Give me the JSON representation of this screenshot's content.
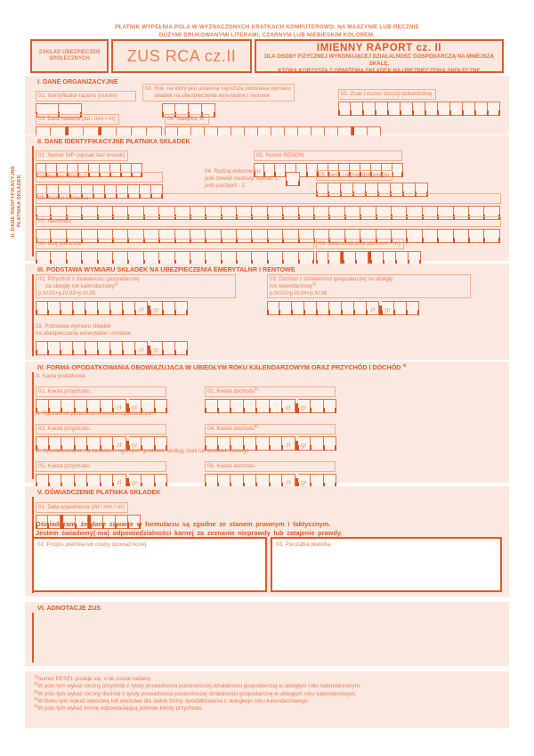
{
  "colors": {
    "accent": "#e0592a",
    "label_orange": "#ed7f52",
    "panel_pink": "#fbe9e1",
    "cell_fill": "#fdf2ec",
    "tick": "#d6521f"
  },
  "currency": {
    "zl": "zł",
    "gr": "gr"
  },
  "instructions": {
    "l1": "PŁATNIK WYPEŁNIA POLA W WYZNACZONYCH KRATKACH KOMPUTEROWO, NA MASZYNIE LUB RĘCZNIE",
    "l2": "DUŻYMI DRUKOWANYMI LITERAMI, CZARNYM LUB NIEBIESKIM KOLOREM."
  },
  "header": {
    "org_l1": "ZAKŁAD UBEZPIECZEŃ",
    "org_l2": "SPOŁECZNYCH",
    "code": "ZUS RCA cz.II",
    "title": "IMIENNY RAPORT cz. II",
    "sub_l1": "DLA OSOBY FIZYCZNEJ WYKONUJĄCEJ DZIAŁALNOŚĆ GOSPODARCZĄ NA MNIEJSZĄ SKALĘ,",
    "sub_l2": "KTÓRA KORZYSTA Z OBNIŻENIA SKŁADEK NA UBEZPIECZENIA SPOŁECZNE"
  },
  "s1": {
    "title": "I. DANE ORGANIZACYJNE",
    "f01": "01. Identyfikator raportu (numer)",
    "f02_l1": "02. Rok, na który jest ustalona najniższa podstawa wymiaru",
    "f02_l2": "składek na ubezpieczenia emerytalne i rentowe",
    "f03": "03. Data nadania (dd / mm / rrr)",
    "f04": "04. Nalepka „R”",
    "f05": "05. Znak i numer decyzji pokontrolnej"
  },
  "s2": {
    "title": "II. DANE IDENTYFIKACYJNE PŁATNIKA SKŁADEK",
    "side_l1": "II. DANE IDENTYFIKACYJNE",
    "side_l2": "PŁATNIKA SKŁADEK",
    "f01": "01. Numer NIP (wpisać bez kresek)",
    "f02": "02. Numer REGON",
    "f03": {
      "label": "03. Numer PESEL",
      "sup": "1)"
    },
    "f04_l1": "04. Rodzaj dokumentu:",
    "f04_l2": "jeśli dowód osobisty, wpisać 1,",
    "f04_l3": "jeśli paszport - 2",
    "f05": "05. Seria i numer dokumentu",
    "f06": "06. Nazwa skrócona",
    "f07": "07. Nazwisko",
    "f08": "08. Imię pierwsze",
    "f09": "09. Data urodzenia (dd / mm / rrr)"
  },
  "s3": {
    "title": "III. PODSTAWA WYMIARU SKŁADEK NA UBEZPIECZENIA EMERYTALNR I RENTOWE",
    "f01_l1": "01. Przychód z działalności gospodarczej",
    "f01_l2": "za ubiegły rok kalendarzowy",
    "f01_sup": "2)",
    "f01_l3": "p.IV.01+p.IV.03+p.IV.05",
    "f02_l1": "02. Podstawa wymiaru składek",
    "f02_l2": "na ubezpieczenie emerytalne i rentowe",
    "f03_l1": "03. Dochód z działalności gospodarczej za ubiegły",
    "f03_l2": "rok kalendarzowy",
    "f03_sup": "3)",
    "f03_l3": "p.IV.02+p.IV.04+p.IV.06"
  },
  "s4": {
    "title": "IV. FORMA OPODATKOWANIA OBOWIĄZUJĄCA W UBIEGŁYM ROKU KALENDARZOWYM ORAZ PRZYCHÓD I DOCHÓD",
    "title_sup": "4)",
    "a": "A. Karta podatkowa",
    "f01": "01. Kwota przychodu",
    "f02": {
      "label": "02. Kwota dochodu",
      "sup": "5)"
    },
    "b": "B. Ryczałt od przychodów ewidencjonowanych",
    "f03": "03. Kwota przychodu",
    "f04": {
      "label": "04. Kwota dochodu",
      "sup": "5)"
    },
    "c": "C. Opodatkowanie na zasadach ogólnych (podatek według skali lub podatek liniowy)",
    "f05": "05. Kwota przychodu",
    "f06": "06. Kwota dochodu"
  },
  "s5": {
    "title": "V. OŚWIADCZENIE PŁATNIKA SKŁADEK",
    "f01": "01. Data wypełnienia (dd / mm / rrr)",
    "decl_l1": "Oświadczam, że dane zawarte w formularzu są zgodne ze stanem prawnym i faktycznym.",
    "decl_l2": "Jestem świadomy(-ma) odpowiedzialności karnej za zeznanie nieprawdy lub zatajenie prawdy.",
    "f02": "02. Podpis płatnika lub osoby upoważnionej",
    "f03": "03. Pieczątka płatnika"
  },
  "s6": {
    "title": "VI. ADNOTACJE ZUS"
  },
  "footnotes": [
    {
      "sup": "1)",
      "text": "Numer PESEL podaje się, o ile został nadany."
    },
    {
      "sup": "2)",
      "text": "W polu tym wykaż roczny przychód z tytuły prowadzenia pozarolniczej działalności gospodarczej w ubiegłym roku kalendarzowym."
    },
    {
      "sup": "3)",
      "text": "W polu tym wykaż roczny dochód z tytuły prowadzenia pozarolniczej działalności gospodarczej w ubiegłym roku kalendarzowym."
    },
    {
      "sup": "4)",
      "text": "W bloku tym wykaż właściwą lub właściwe dla siebie formy opodatkowania z ubiegłego roku kalendarzowego."
    },
    {
      "sup": "5)",
      "text": "W polu tym wykaż kwotę odpowiadającą połowie kwoty przychodu."
    }
  ]
}
